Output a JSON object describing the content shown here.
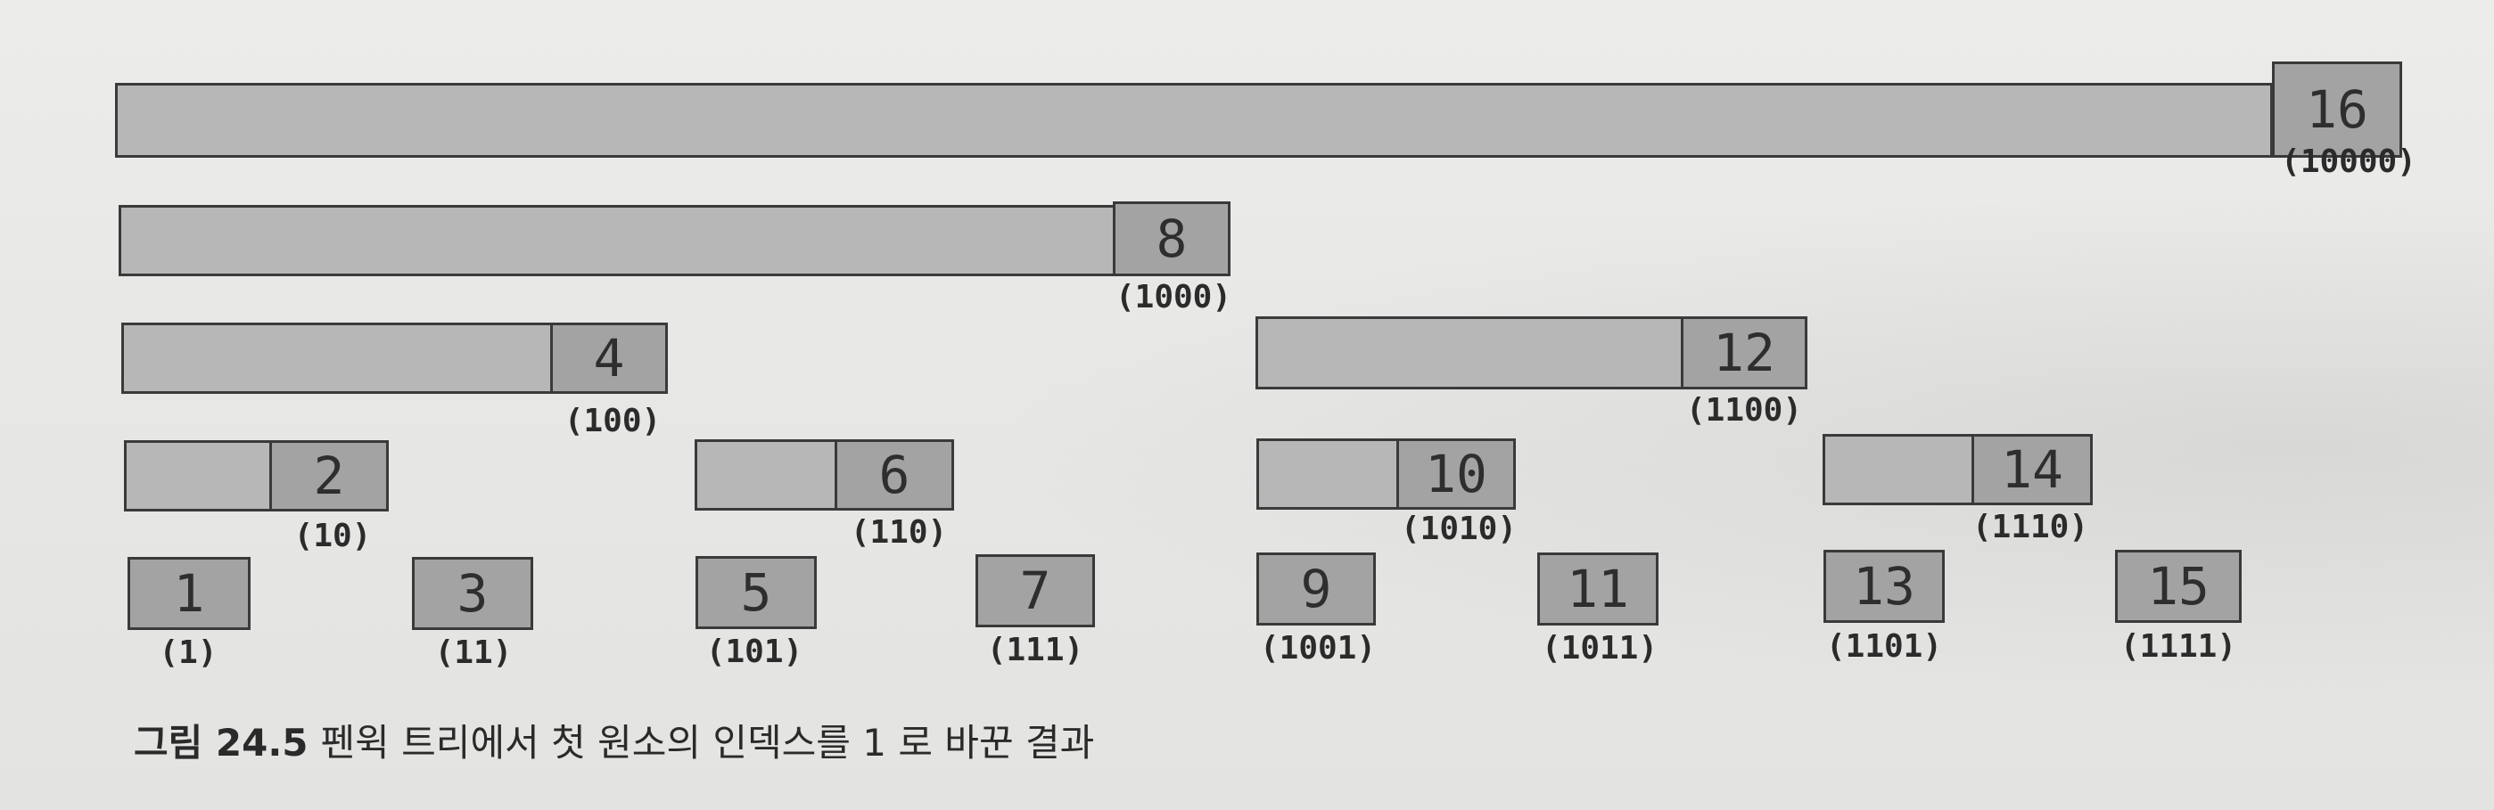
{
  "nodes": [
    {
      "value": "16",
      "binary": "(10000)",
      "level": 4
    },
    {
      "value": "8",
      "binary": "(1000)",
      "level": 3
    },
    {
      "value": "4",
      "binary": "(100)",
      "level": 2
    },
    {
      "value": "12",
      "binary": "(1100)",
      "level": 2
    },
    {
      "value": "2",
      "binary": "(10)",
      "level": 1
    },
    {
      "value": "6",
      "binary": "(110)",
      "level": 1
    },
    {
      "value": "10",
      "binary": "(1010)",
      "level": 1
    },
    {
      "value": "14",
      "binary": "(1110)",
      "level": 1
    },
    {
      "value": "1",
      "binary": "(1)",
      "level": 0
    },
    {
      "value": "3",
      "binary": "(11)",
      "level": 0
    },
    {
      "value": "5",
      "binary": "(101)",
      "level": 0
    },
    {
      "value": "7",
      "binary": "(111)",
      "level": 0
    },
    {
      "value": "9",
      "binary": "(1001)",
      "level": 0
    },
    {
      "value": "11",
      "binary": "(1011)",
      "level": 0
    },
    {
      "value": "13",
      "binary": "(1101)",
      "level": 0
    },
    {
      "value": "15",
      "binary": "(1111)",
      "level": 0
    }
  ],
  "caption": {
    "number": "그림 24.5",
    "text": "펜윅 트리에서 첫 원소의 인덱스를 1 로 바꾼 결과"
  }
}
